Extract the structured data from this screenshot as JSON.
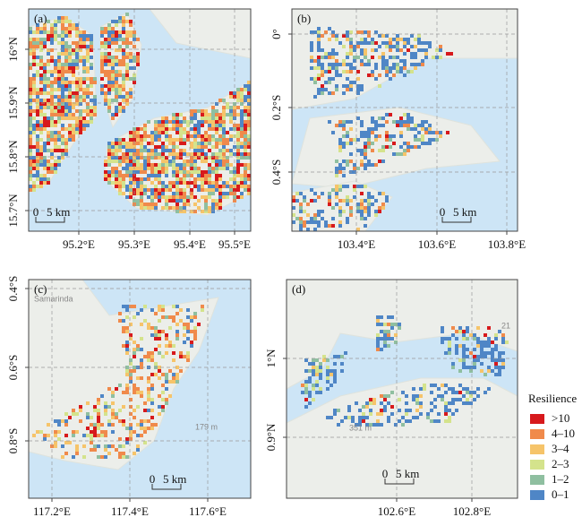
{
  "panels": [
    {
      "label": "(a)",
      "x_ticks": [
        "95.2°E",
        "95.3°E",
        "95.4°E",
        "95.5°E"
      ],
      "y_ticks": [
        "16°N",
        "15.9°N",
        "15.8°N",
        "15.7°N"
      ],
      "scale_zero": "0",
      "scale_text": "5 km"
    },
    {
      "label": "(b)",
      "x_ticks": [
        "103.4°E",
        "103.6°E",
        "103.8°E"
      ],
      "y_ticks": [
        "0°",
        "0.2°S",
        "0.4°S"
      ],
      "scale_zero": "0",
      "scale_text": "5 km"
    },
    {
      "label": "(c)",
      "x_ticks": [
        "117.2°E",
        "117.4°E",
        "117.6°E"
      ],
      "y_ticks": [
        "0.4°S",
        "0.6°S",
        "0.8°S"
      ],
      "scale_zero": "0",
      "scale_text": "5 km",
      "place_labels": [
        "Samarinda",
        "179 m"
      ]
    },
    {
      "label": "(d)",
      "x_ticks": [
        "102.6°E",
        "102.8°E"
      ],
      "y_ticks": [
        "1°N",
        "0.9°N"
      ],
      "scale_zero": "0",
      "scale_text": "5 km",
      "place_labels": [
        "351 m",
        "21"
      ]
    }
  ],
  "legend": {
    "title": "Resilience",
    "items": [
      {
        "label": ">10",
        "color": "#d7191c"
      },
      {
        "label": "4–10",
        "color": "#f08a4b"
      },
      {
        "label": "3–4",
        "color": "#f6c46a"
      },
      {
        "label": "2–3",
        "color": "#d4e38c"
      },
      {
        "label": "1–2",
        "color": "#8fbfa0"
      },
      {
        "label": "0–1",
        "color": "#4f86c6"
      }
    ]
  }
}
